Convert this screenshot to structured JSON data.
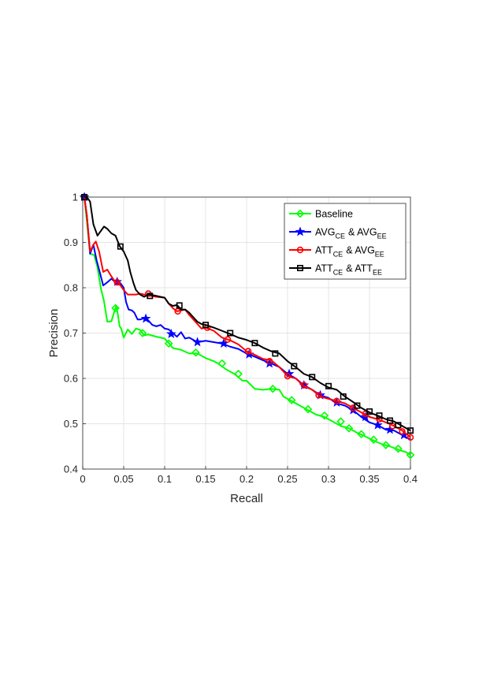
{
  "chart_data": {
    "type": "line",
    "xlabel": "Recall",
    "ylabel": "Precision",
    "xlim": [
      0,
      0.4
    ],
    "ylim": [
      0.4,
      1.0
    ],
    "xticks": [
      "0",
      "0.05",
      "0.1",
      "0.15",
      "0.2",
      "0.25",
      "0.3",
      "0.35",
      "0.4"
    ],
    "yticks": [
      "0.4",
      "0.5",
      "0.6",
      "0.7",
      "0.8",
      "0.9",
      "1"
    ],
    "grid": true,
    "legend_position": "top-right",
    "series": [
      {
        "name": "Baseline",
        "label_main": "Baseline",
        "label_sub": "",
        "label_main2": "",
        "label_sub2": "",
        "color": "#00ff00",
        "marker": "diamond",
        "points": [
          [
            0.002,
            1.0
          ],
          [
            0.006,
            0.93
          ],
          [
            0.009,
            0.875
          ],
          [
            0.014,
            0.872
          ],
          [
            0.018,
            0.845
          ],
          [
            0.022,
            0.8
          ],
          [
            0.026,
            0.77
          ],
          [
            0.03,
            0.725
          ],
          [
            0.035,
            0.726
          ],
          [
            0.039,
            0.75
          ],
          [
            0.041,
            0.76
          ],
          [
            0.043,
            0.74
          ],
          [
            0.045,
            0.715
          ],
          [
            0.047,
            0.71
          ],
          [
            0.05,
            0.69
          ],
          [
            0.055,
            0.708
          ],
          [
            0.06,
            0.698
          ],
          [
            0.065,
            0.71
          ],
          [
            0.07,
            0.707
          ],
          [
            0.075,
            0.695
          ],
          [
            0.08,
            0.697
          ],
          [
            0.09,
            0.692
          ],
          [
            0.1,
            0.688
          ],
          [
            0.105,
            0.678
          ],
          [
            0.11,
            0.667
          ],
          [
            0.12,
            0.663
          ],
          [
            0.13,
            0.655
          ],
          [
            0.14,
            0.655
          ],
          [
            0.15,
            0.645
          ],
          [
            0.16,
            0.638
          ],
          [
            0.165,
            0.633
          ],
          [
            0.175,
            0.62
          ],
          [
            0.185,
            0.61
          ],
          [
            0.195,
            0.595
          ],
          [
            0.2,
            0.595
          ],
          [
            0.21,
            0.577
          ],
          [
            0.22,
            0.575
          ],
          [
            0.23,
            0.577
          ],
          [
            0.24,
            0.575
          ],
          [
            0.245,
            0.56
          ],
          [
            0.255,
            0.55
          ],
          [
            0.265,
            0.54
          ],
          [
            0.275,
            0.53
          ],
          [
            0.285,
            0.52
          ],
          [
            0.295,
            0.515
          ],
          [
            0.305,
            0.505
          ],
          [
            0.315,
            0.495
          ],
          [
            0.325,
            0.49
          ],
          [
            0.335,
            0.48
          ],
          [
            0.345,
            0.472
          ],
          [
            0.355,
            0.463
          ],
          [
            0.365,
            0.455
          ],
          [
            0.375,
            0.45
          ],
          [
            0.385,
            0.443
          ],
          [
            0.395,
            0.437
          ],
          [
            0.4,
            0.431
          ]
        ],
        "markers": [
          [
            0.002,
            1.0
          ],
          [
            0.04,
            0.755
          ],
          [
            0.073,
            0.7
          ],
          [
            0.105,
            0.677
          ],
          [
            0.138,
            0.657
          ],
          [
            0.17,
            0.633
          ],
          [
            0.19,
            0.61
          ],
          [
            0.232,
            0.577
          ],
          [
            0.255,
            0.552
          ],
          [
            0.275,
            0.532
          ],
          [
            0.295,
            0.518
          ],
          [
            0.315,
            0.505
          ],
          [
            0.325,
            0.49
          ],
          [
            0.34,
            0.477
          ],
          [
            0.355,
            0.465
          ],
          [
            0.37,
            0.453
          ],
          [
            0.385,
            0.445
          ],
          [
            0.4,
            0.431
          ]
        ]
      },
      {
        "name": "AVG_CE & AVG_EE",
        "label_main": "AVG",
        "label_sub": "CE",
        "label_main2": "& AVG",
        "label_sub2": "EE",
        "color": "#0000ff",
        "marker": "star",
        "points": [
          [
            0.002,
            1.0
          ],
          [
            0.005,
            0.96
          ],
          [
            0.009,
            0.875
          ],
          [
            0.013,
            0.895
          ],
          [
            0.017,
            0.86
          ],
          [
            0.02,
            0.84
          ],
          [
            0.025,
            0.805
          ],
          [
            0.03,
            0.812
          ],
          [
            0.035,
            0.82
          ],
          [
            0.04,
            0.812
          ],
          [
            0.043,
            0.813
          ],
          [
            0.046,
            0.81
          ],
          [
            0.05,
            0.8
          ],
          [
            0.053,
            0.768
          ],
          [
            0.056,
            0.752
          ],
          [
            0.06,
            0.75
          ],
          [
            0.063,
            0.745
          ],
          [
            0.067,
            0.73
          ],
          [
            0.07,
            0.73
          ],
          [
            0.075,
            0.733
          ],
          [
            0.08,
            0.728
          ],
          [
            0.085,
            0.718
          ],
          [
            0.09,
            0.715
          ],
          [
            0.095,
            0.718
          ],
          [
            0.1,
            0.71
          ],
          [
            0.105,
            0.708
          ],
          [
            0.11,
            0.7
          ],
          [
            0.115,
            0.692
          ],
          [
            0.12,
            0.702
          ],
          [
            0.125,
            0.688
          ],
          [
            0.13,
            0.69
          ],
          [
            0.14,
            0.68
          ],
          [
            0.15,
            0.683
          ],
          [
            0.16,
            0.68
          ],
          [
            0.17,
            0.677
          ],
          [
            0.18,
            0.67
          ],
          [
            0.19,
            0.665
          ],
          [
            0.2,
            0.655
          ],
          [
            0.21,
            0.648
          ],
          [
            0.22,
            0.64
          ],
          [
            0.23,
            0.633
          ],
          [
            0.24,
            0.625
          ],
          [
            0.25,
            0.61
          ],
          [
            0.26,
            0.6
          ],
          [
            0.27,
            0.585
          ],
          [
            0.28,
            0.575
          ],
          [
            0.29,
            0.563
          ],
          [
            0.3,
            0.557
          ],
          [
            0.31,
            0.545
          ],
          [
            0.32,
            0.54
          ],
          [
            0.33,
            0.53
          ],
          [
            0.34,
            0.515
          ],
          [
            0.35,
            0.503
          ],
          [
            0.36,
            0.497
          ],
          [
            0.37,
            0.487
          ],
          [
            0.38,
            0.485
          ],
          [
            0.39,
            0.475
          ],
          [
            0.4,
            0.465
          ]
        ],
        "markers": [
          [
            0.002,
            1.0
          ],
          [
            0.042,
            0.813
          ],
          [
            0.077,
            0.732
          ],
          [
            0.108,
            0.698
          ],
          [
            0.14,
            0.68
          ],
          [
            0.172,
            0.677
          ],
          [
            0.203,
            0.653
          ],
          [
            0.228,
            0.633
          ],
          [
            0.252,
            0.61
          ],
          [
            0.27,
            0.585
          ],
          [
            0.29,
            0.563
          ],
          [
            0.31,
            0.547
          ],
          [
            0.33,
            0.53
          ],
          [
            0.345,
            0.515
          ],
          [
            0.36,
            0.497
          ],
          [
            0.375,
            0.487
          ],
          [
            0.392,
            0.475
          ]
        ]
      },
      {
        "name": "ATT_CE & AVG_EE",
        "label_main": "ATT",
        "label_sub": "CE",
        "label_main2": "& AVG",
        "label_sub2": "EE",
        "color": "#ff0000",
        "marker": "circle",
        "points": [
          [
            0.002,
            1.0
          ],
          [
            0.005,
            0.96
          ],
          [
            0.009,
            0.88
          ],
          [
            0.013,
            0.895
          ],
          [
            0.016,
            0.902
          ],
          [
            0.02,
            0.88
          ],
          [
            0.025,
            0.835
          ],
          [
            0.03,
            0.84
          ],
          [
            0.035,
            0.825
          ],
          [
            0.04,
            0.812
          ],
          [
            0.043,
            0.813
          ],
          [
            0.05,
            0.795
          ],
          [
            0.055,
            0.785
          ],
          [
            0.06,
            0.785
          ],
          [
            0.065,
            0.785
          ],
          [
            0.07,
            0.787
          ],
          [
            0.075,
            0.785
          ],
          [
            0.08,
            0.783
          ],
          [
            0.09,
            0.78
          ],
          [
            0.1,
            0.778
          ],
          [
            0.105,
            0.765
          ],
          [
            0.11,
            0.755
          ],
          [
            0.115,
            0.748
          ],
          [
            0.12,
            0.75
          ],
          [
            0.125,
            0.752
          ],
          [
            0.13,
            0.74
          ],
          [
            0.135,
            0.73
          ],
          [
            0.14,
            0.72
          ],
          [
            0.145,
            0.71
          ],
          [
            0.15,
            0.712
          ],
          [
            0.16,
            0.705
          ],
          [
            0.17,
            0.69
          ],
          [
            0.18,
            0.684
          ],
          [
            0.19,
            0.675
          ],
          [
            0.2,
            0.66
          ],
          [
            0.21,
            0.652
          ],
          [
            0.22,
            0.643
          ],
          [
            0.23,
            0.64
          ],
          [
            0.24,
            0.625
          ],
          [
            0.25,
            0.605
          ],
          [
            0.26,
            0.6
          ],
          [
            0.27,
            0.583
          ],
          [
            0.28,
            0.575
          ],
          [
            0.29,
            0.56
          ],
          [
            0.3,
            0.555
          ],
          [
            0.31,
            0.55
          ],
          [
            0.32,
            0.545
          ],
          [
            0.33,
            0.535
          ],
          [
            0.34,
            0.525
          ],
          [
            0.35,
            0.515
          ],
          [
            0.36,
            0.51
          ],
          [
            0.37,
            0.503
          ],
          [
            0.38,
            0.495
          ],
          [
            0.39,
            0.485
          ],
          [
            0.4,
            0.47
          ]
        ],
        "markers": [
          [
            0.002,
            1.0
          ],
          [
            0.042,
            0.812
          ],
          [
            0.08,
            0.787
          ],
          [
            0.116,
            0.748
          ],
          [
            0.152,
            0.712
          ],
          [
            0.177,
            0.686
          ],
          [
            0.202,
            0.66
          ],
          [
            0.228,
            0.638
          ],
          [
            0.25,
            0.605
          ],
          [
            0.27,
            0.585
          ],
          [
            0.288,
            0.563
          ],
          [
            0.31,
            0.55
          ],
          [
            0.33,
            0.535
          ],
          [
            0.345,
            0.522
          ],
          [
            0.362,
            0.51
          ],
          [
            0.378,
            0.495
          ],
          [
            0.39,
            0.483
          ],
          [
            0.4,
            0.47
          ]
        ]
      },
      {
        "name": "ATT_CE & ATT_EE",
        "label_main": "ATT",
        "label_sub": "CE",
        "label_main2": "& ATT",
        "label_sub2": "EE",
        "color": "#000000",
        "marker": "square",
        "points": [
          [
            0.002,
            1.0
          ],
          [
            0.005,
            1.0
          ],
          [
            0.009,
            0.99
          ],
          [
            0.013,
            0.94
          ],
          [
            0.018,
            0.915
          ],
          [
            0.022,
            0.925
          ],
          [
            0.026,
            0.935
          ],
          [
            0.03,
            0.93
          ],
          [
            0.035,
            0.92
          ],
          [
            0.04,
            0.915
          ],
          [
            0.045,
            0.892
          ],
          [
            0.05,
            0.88
          ],
          [
            0.055,
            0.86
          ],
          [
            0.058,
            0.835
          ],
          [
            0.062,
            0.81
          ],
          [
            0.065,
            0.795
          ],
          [
            0.07,
            0.785
          ],
          [
            0.075,
            0.78
          ],
          [
            0.08,
            0.785
          ],
          [
            0.085,
            0.784
          ],
          [
            0.09,
            0.782
          ],
          [
            0.1,
            0.778
          ],
          [
            0.105,
            0.765
          ],
          [
            0.11,
            0.76
          ],
          [
            0.115,
            0.762
          ],
          [
            0.12,
            0.752
          ],
          [
            0.125,
            0.752
          ],
          [
            0.13,
            0.745
          ],
          [
            0.135,
            0.735
          ],
          [
            0.14,
            0.725
          ],
          [
            0.145,
            0.72
          ],
          [
            0.15,
            0.718
          ],
          [
            0.16,
            0.712
          ],
          [
            0.17,
            0.705
          ],
          [
            0.18,
            0.698
          ],
          [
            0.19,
            0.69
          ],
          [
            0.2,
            0.685
          ],
          [
            0.21,
            0.678
          ],
          [
            0.22,
            0.668
          ],
          [
            0.23,
            0.66
          ],
          [
            0.24,
            0.655
          ],
          [
            0.25,
            0.638
          ],
          [
            0.26,
            0.625
          ],
          [
            0.27,
            0.61
          ],
          [
            0.28,
            0.603
          ],
          [
            0.29,
            0.59
          ],
          [
            0.3,
            0.58
          ],
          [
            0.31,
            0.575
          ],
          [
            0.32,
            0.56
          ],
          [
            0.33,
            0.548
          ],
          [
            0.34,
            0.535
          ],
          [
            0.35,
            0.525
          ],
          [
            0.36,
            0.518
          ],
          [
            0.37,
            0.51
          ],
          [
            0.38,
            0.505
          ],
          [
            0.39,
            0.495
          ],
          [
            0.4,
            0.485
          ]
        ],
        "markers": [
          [
            0.002,
            1.0
          ],
          [
            0.046,
            0.891
          ],
          [
            0.082,
            0.782
          ],
          [
            0.118,
            0.761
          ],
          [
            0.15,
            0.718
          ],
          [
            0.18,
            0.7
          ],
          [
            0.21,
            0.678
          ],
          [
            0.235,
            0.655
          ],
          [
            0.258,
            0.627
          ],
          [
            0.28,
            0.603
          ],
          [
            0.3,
            0.583
          ],
          [
            0.318,
            0.56
          ],
          [
            0.335,
            0.54
          ],
          [
            0.35,
            0.527
          ],
          [
            0.362,
            0.518
          ],
          [
            0.375,
            0.507
          ],
          [
            0.385,
            0.497
          ],
          [
            0.4,
            0.485
          ]
        ]
      }
    ]
  }
}
